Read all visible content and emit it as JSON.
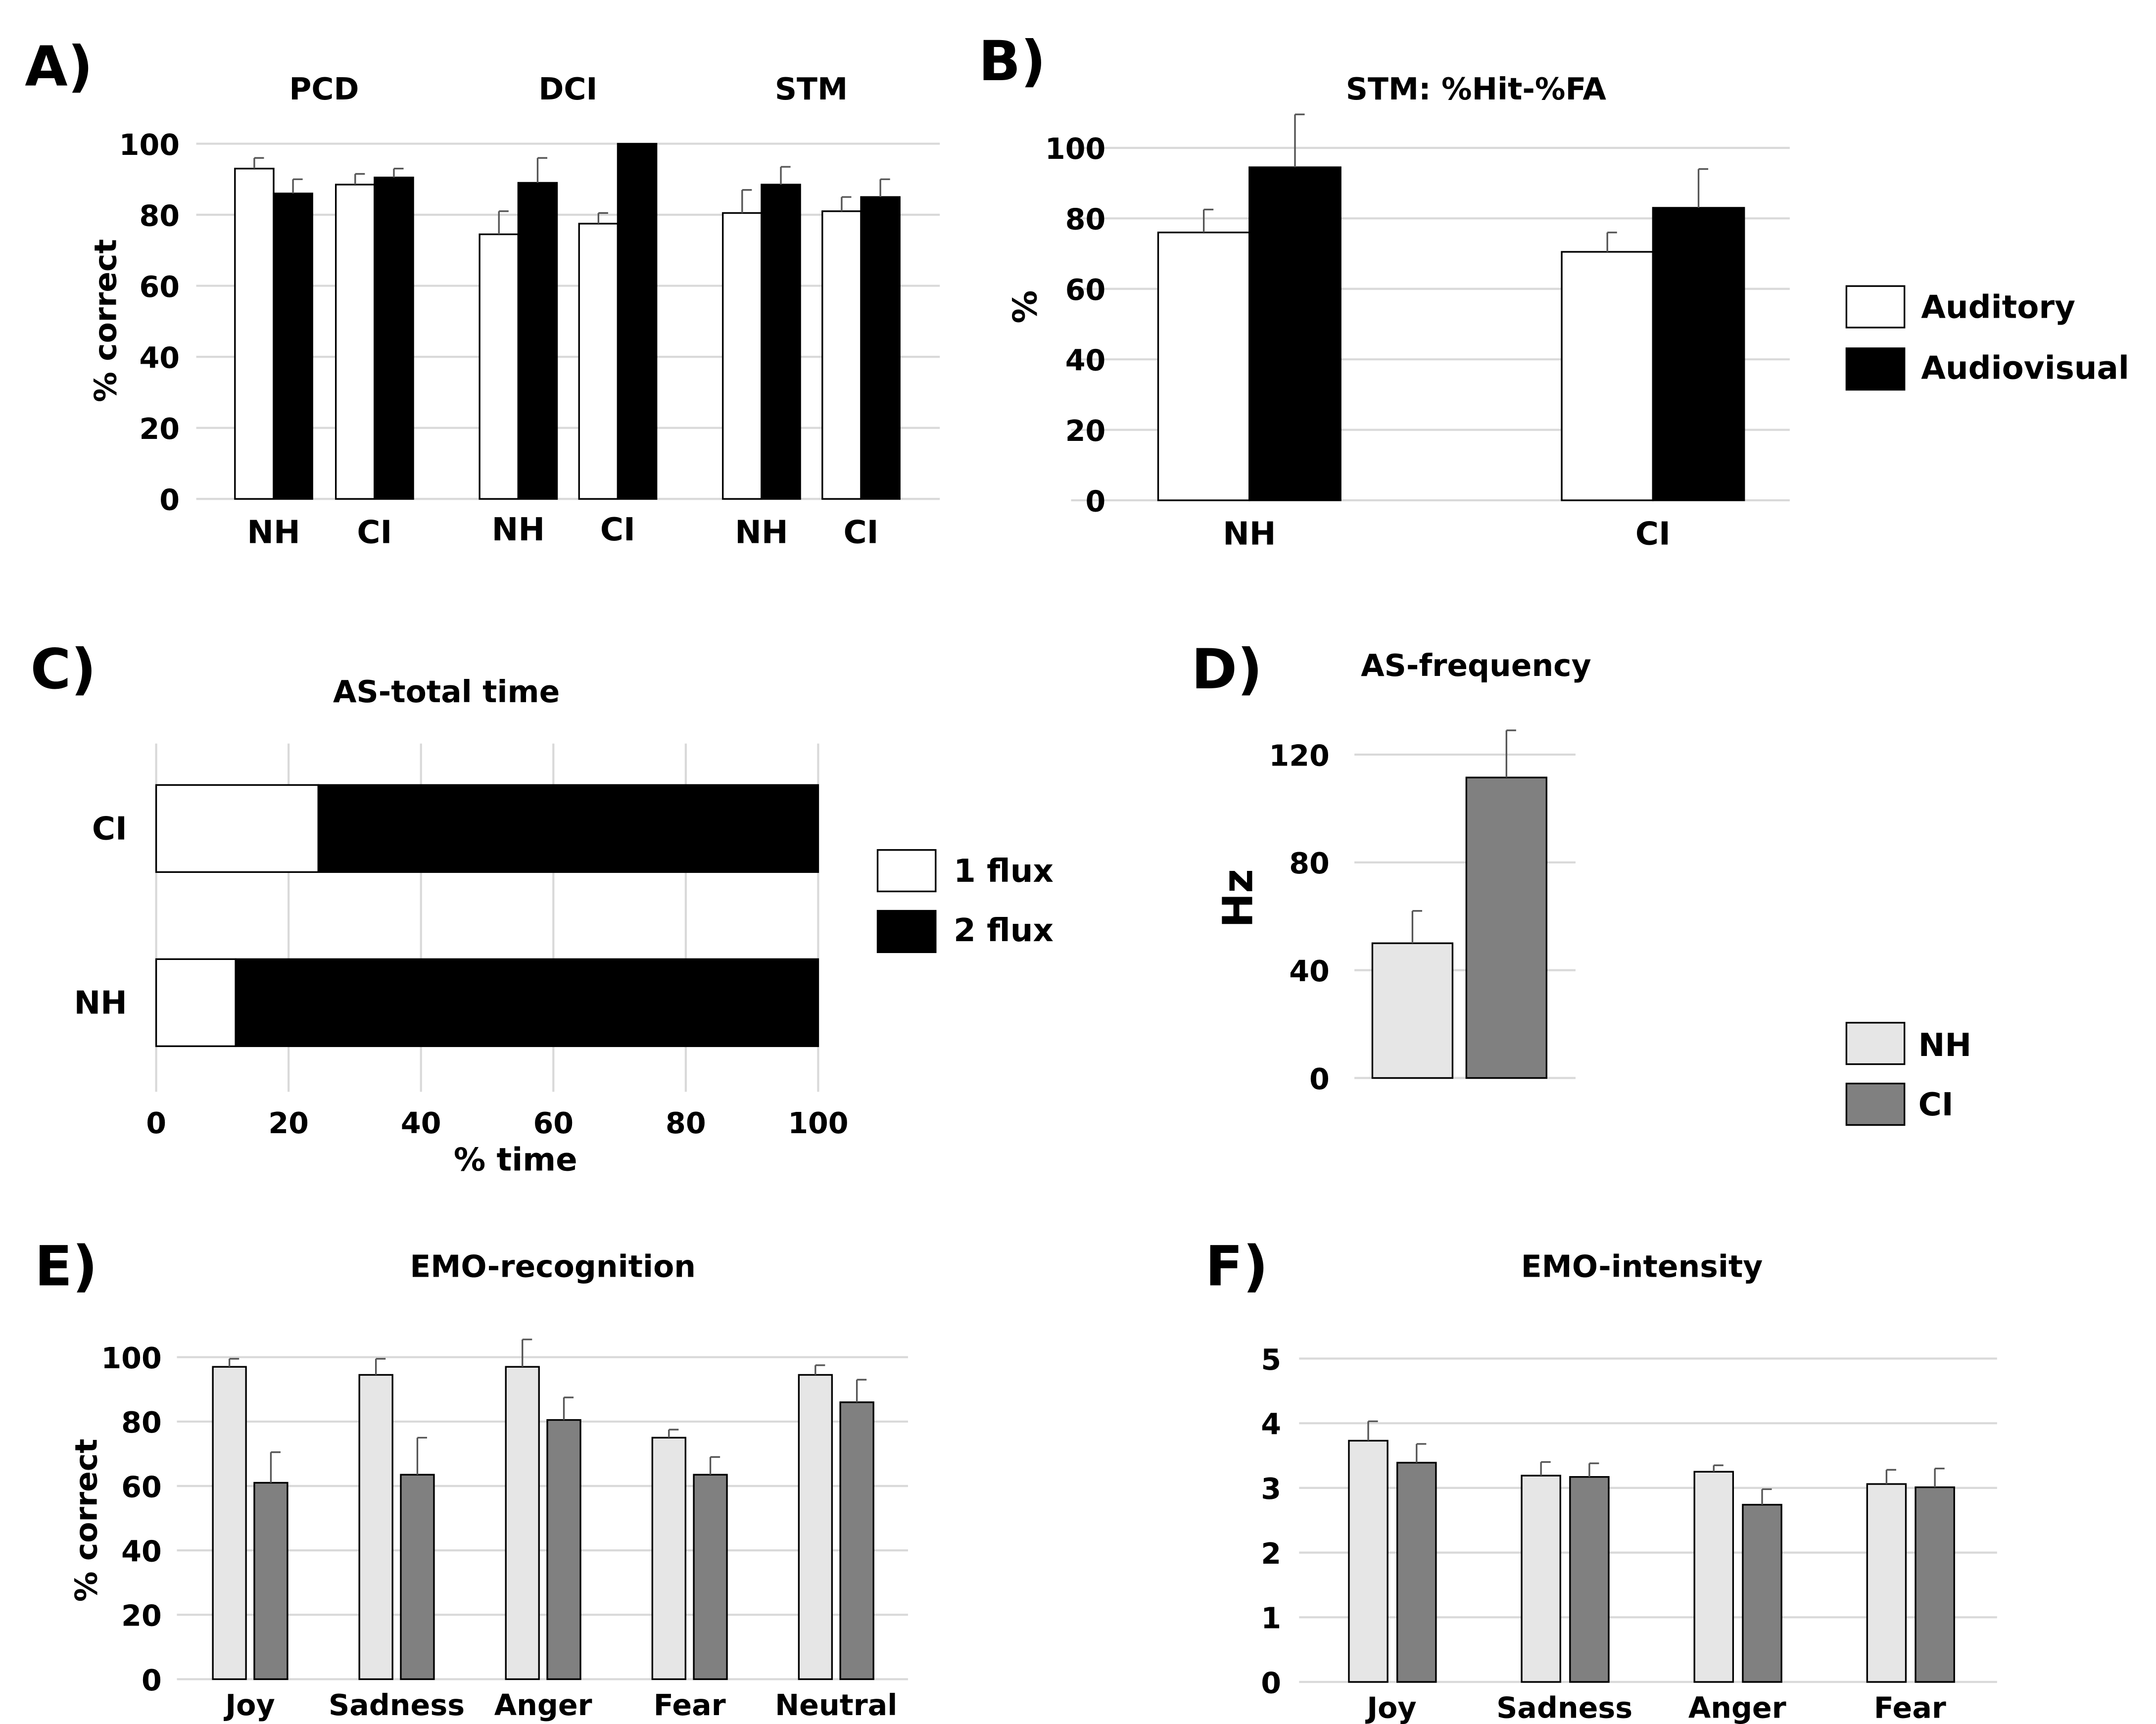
{
  "colors": {
    "white_bar": "#ffffff",
    "black_bar": "#000000",
    "nh_bar": "#e6e6e6",
    "ci_bar": "#808080",
    "grid": "#d9d9d9",
    "axis": "#666666"
  },
  "chart_data": [
    {
      "id": "A",
      "panel_label": "A)",
      "type": "bar",
      "title": "",
      "ylabel": "% correct",
      "ylim": [
        0,
        100
      ],
      "yticks": [
        0,
        20,
        40,
        60,
        80,
        100
      ],
      "conditions": [
        "Auditory",
        "Audiovisual"
      ],
      "groups": [
        {
          "title": "PCD",
          "categories": [
            {
              "label": "NH",
              "values": [
                93,
                86
              ],
              "errors": [
                3,
                4
              ]
            },
            {
              "label": "CI",
              "values": [
                88.5,
                90.5
              ],
              "errors": [
                3,
                2.5
              ]
            }
          ]
        },
        {
          "title": "DCI",
          "categories": [
            {
              "label": "NH",
              "values": [
                74.5,
                89
              ],
              "errors": [
                6.5,
                7
              ]
            },
            {
              "label": "CI",
              "values": [
                77.5,
                100
              ],
              "errors": [
                3,
                0
              ]
            }
          ]
        },
        {
          "title": "STM",
          "categories": [
            {
              "label": "NH",
              "values": [
                80.5,
                88.5
              ],
              "errors": [
                6.5,
                5
              ]
            },
            {
              "label": "CI",
              "values": [
                81,
                85
              ],
              "errors": [
                4,
                5
              ]
            }
          ]
        }
      ]
    },
    {
      "id": "B",
      "panel_label": "B)",
      "type": "bar",
      "title": "STM: %Hit-%FA",
      "ylabel": "%",
      "ylim": [
        0,
        100
      ],
      "yticks": [
        0,
        20,
        40,
        60,
        80,
        100
      ],
      "categories": [
        "NH",
        "CI"
      ],
      "series": [
        {
          "name": "Auditory",
          "values": [
            76,
            70.5
          ],
          "errors": [
            6.5,
            5.5
          ]
        },
        {
          "name": "Audiovisual",
          "values": [
            94.5,
            83
          ],
          "errors": [
            15,
            11
          ]
        }
      ],
      "legend": [
        "Auditory",
        "Audiovisual"
      ],
      "legend_position": "right"
    },
    {
      "id": "C",
      "panel_label": "C)",
      "type": "stacked-horizontal-bar",
      "title": "AS-total time",
      "xlabel": "% time",
      "xlim": [
        0,
        100
      ],
      "xticks": [
        0,
        20,
        40,
        60,
        80,
        100
      ],
      "categories": [
        "CI",
        "NH"
      ],
      "series": [
        {
          "name": "1 flux",
          "values": [
            24.5,
            12
          ]
        },
        {
          "name": "2 flux",
          "values": [
            75.5,
            88
          ]
        }
      ],
      "legend": [
        "1 flux",
        "2 flux"
      ],
      "legend_position": "right"
    },
    {
      "id": "D",
      "panel_label": "D)",
      "type": "bar",
      "title": "AS-frequency",
      "ylabel": "Hz",
      "ylim": [
        0,
        140
      ],
      "yticks": [
        0,
        40,
        80,
        120
      ],
      "categories": [
        "NH",
        "CI"
      ],
      "values": [
        50,
        111.5
      ],
      "errors": [
        12,
        17.5
      ],
      "legend": [
        "NH",
        "CI"
      ],
      "legend_position": "bottom-right"
    },
    {
      "id": "E",
      "panel_label": "E)",
      "type": "bar",
      "title": "EMO-recognition",
      "ylabel": "% correct",
      "ylim": [
        0,
        100
      ],
      "yticks": [
        0,
        20,
        40,
        60,
        80,
        100
      ],
      "categories": [
        "Joy",
        "Sadness",
        "Anger",
        "Fear",
        "Neutral"
      ],
      "series": [
        {
          "name": "NH",
          "values": [
            97,
            94.5,
            97,
            75,
            94.5
          ],
          "errors": [
            2.5,
            5,
            8.5,
            2.5,
            3
          ]
        },
        {
          "name": "CI",
          "values": [
            61,
            63.5,
            80.5,
            63.5,
            86
          ],
          "errors": [
            9.5,
            11.5,
            7,
            5.5,
            7
          ]
        }
      ]
    },
    {
      "id": "F",
      "panel_label": "F)",
      "type": "bar",
      "title": "EMO-intensity",
      "ylabel": "",
      "ylim": [
        0,
        5
      ],
      "yticks": [
        0,
        1,
        2,
        3,
        4,
        5
      ],
      "categories": [
        "Joy",
        "Sadness",
        "Anger",
        "Fear"
      ],
      "series": [
        {
          "name": "NH",
          "values": [
            3.73,
            3.19,
            3.25,
            3.06
          ],
          "errors": [
            0.3,
            0.21,
            0.1,
            0.22
          ]
        },
        {
          "name": "CI",
          "values": [
            3.39,
            3.17,
            2.74,
            3.01
          ],
          "errors": [
            0.29,
            0.21,
            0.24,
            0.29
          ]
        }
      ]
    }
  ]
}
